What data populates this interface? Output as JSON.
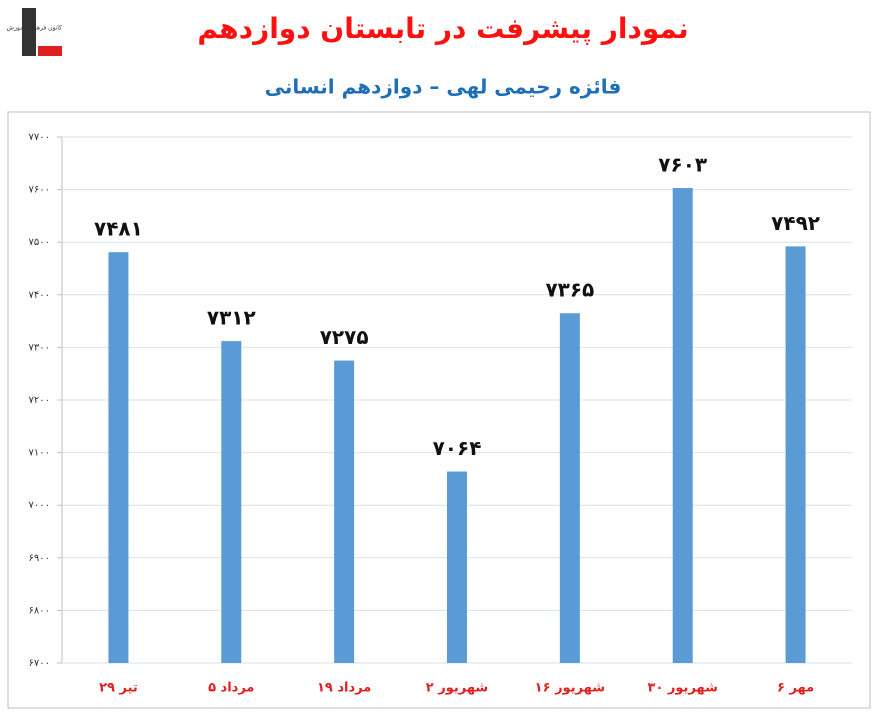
{
  "logo_text": "کانون فرهنگی آموزش",
  "chart_data": {
    "type": "bar",
    "title": "نمودار پیشرفت در تابستان دوازدهم",
    "subtitle": "فائزه رحیمی لهی – دوازدهم انسانی",
    "categories": [
      "۲۹ تیر",
      "۵ مرداد",
      "۱۹ مرداد",
      "۲ شهریور",
      "۱۶ شهریور",
      "۳۰ شهریور",
      "۶ مهر"
    ],
    "values": [
      7481,
      7312,
      7275,
      7064,
      7365,
      7603,
      7492
    ],
    "value_labels": [
      "۷۴۸۱",
      "۷۳۱۲",
      "۷۲۷۵",
      "۷۰۶۴",
      "۷۳۶۵",
      "۷۶۰۳",
      "۷۴۹۲"
    ],
    "color": "#5b9bd5",
    "ylim": [
      6700,
      7700
    ],
    "yticks": [
      {
        "value": 6700,
        "label": "۶۷۰۰"
      },
      {
        "value": 6800,
        "label": "۶۸۰۰"
      },
      {
        "value": 6900,
        "label": "۶۹۰۰"
      },
      {
        "value": 7000,
        "label": "۷۰۰۰"
      },
      {
        "value": 7100,
        "label": "۷۱۰۰"
      },
      {
        "value": 7200,
        "label": "۷۲۰۰"
      },
      {
        "value": 7300,
        "label": "۷۳۰۰"
      },
      {
        "value": 7400,
        "label": "۷۴۰۰"
      },
      {
        "value": 7500,
        "label": "۷۵۰۰"
      },
      {
        "value": 7600,
        "label": "۷۶۰۰"
      },
      {
        "value": 7700,
        "label": "۷۷۰۰"
      }
    ],
    "grid": true
  }
}
